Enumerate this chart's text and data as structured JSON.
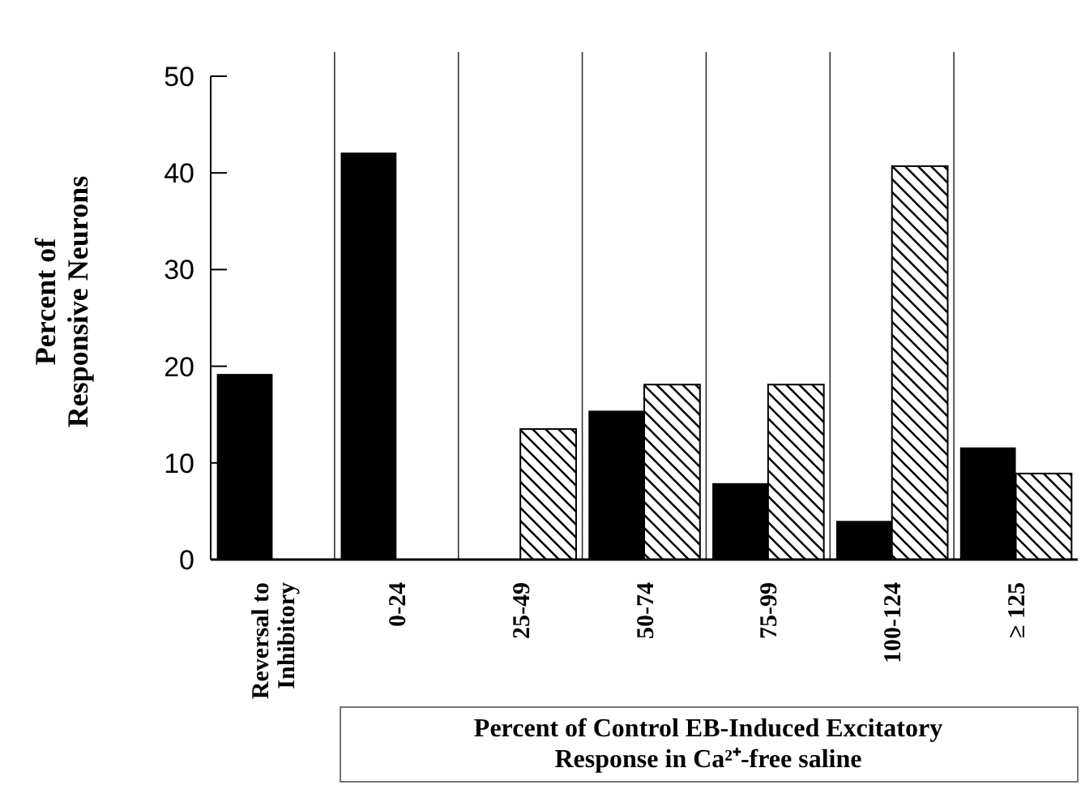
{
  "chart_data": {
    "type": "bar",
    "ylabel": "Percent of\nResponsive Neurons",
    "xlabel": "Percent of Control EB-Induced Excitatory\nResponse in Ca²⁺-free saline",
    "categories": [
      "Reversal to\nInhibitory",
      "0-24",
      "25-49",
      "50-74",
      "75-99",
      "100-124",
      "≥ 125"
    ],
    "series": [
      {
        "color": "#000000",
        "values": [
          19.2,
          42.1,
          null,
          15.4,
          7.9,
          4.0,
          11.6
        ]
      },
      {
        "color": "#ffffff",
        "values": [
          null,
          null,
          13.5,
          18.1,
          18.1,
          40.7,
          8.9
        ]
      }
    ],
    "ylim": [
      0,
      50
    ],
    "yticks": [
      0,
      10,
      20,
      30,
      40,
      50
    ],
    "grid": false
  }
}
